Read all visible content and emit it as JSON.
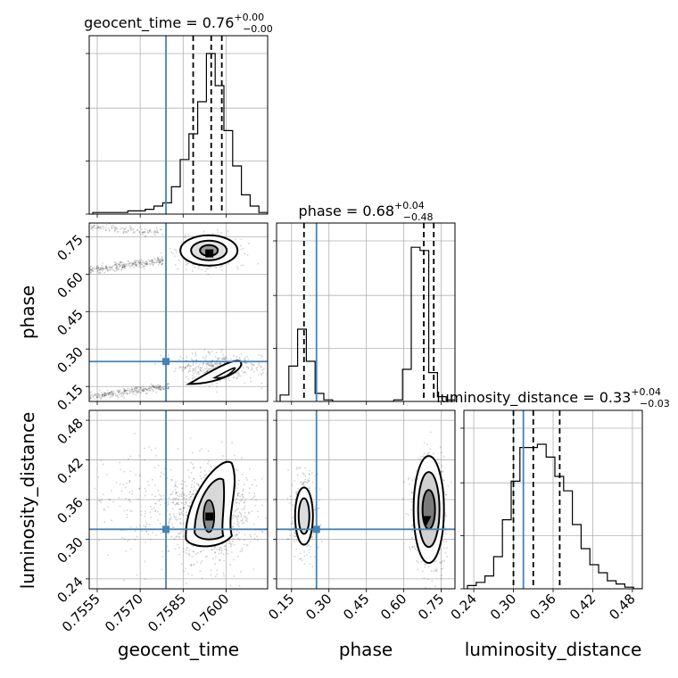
{
  "chart_data": {
    "type": "corner",
    "parameters": [
      "geocent_time",
      "phase",
      "luminosity_distance"
    ],
    "axis_labels": {
      "geocent_time": "geocent_time",
      "phase": "phase",
      "luminosity_distance": "luminosity_distance"
    },
    "titles": {
      "geocent_time": {
        "name": "geocent_time",
        "value": "0.76",
        "plus": "+0.00",
        "minus": "−0.00"
      },
      "phase": {
        "name": "phase",
        "value": "0.68",
        "plus": "+0.04",
        "minus": "−0.48"
      },
      "luminosity_distance": {
        "name": "luminosity_distance",
        "value": "0.33",
        "plus": "+0.04",
        "minus": "−0.03"
      }
    },
    "ranges": {
      "geocent_time": [
        0.75522,
        0.76145
      ],
      "phase": [
        0.09,
        0.805
      ],
      "luminosity_distance": [
        0.225,
        0.495
      ]
    },
    "ticks": {
      "geocent_time": {
        "values": [
          0.7555,
          0.757,
          0.7585,
          0.76
        ],
        "labels": [
          "0.7555",
          "0.7570",
          "0.7585",
          "0.7600"
        ]
      },
      "phase": {
        "values": [
          0.15,
          0.3,
          0.45,
          0.6,
          0.75
        ],
        "labels": [
          "0.15",
          "0.30",
          "0.45",
          "0.60",
          "0.75"
        ]
      },
      "luminosity_distance": {
        "values": [
          0.24,
          0.3,
          0.36,
          0.42,
          0.48
        ],
        "labels": [
          "0.24",
          "0.30",
          "0.36",
          "0.42",
          "0.48"
        ]
      }
    },
    "truths": {
      "geocent_time": 0.7579,
      "phase": 0.25,
      "luminosity_distance": 0.315
    },
    "quantiles": {
      "geocent_time": [
        0.75885,
        0.75948,
        0.75985
      ],
      "phase": [
        0.2,
        0.68,
        0.72
      ],
      "luminosity_distance": [
        0.3,
        0.33,
        0.37
      ]
    },
    "histograms": {
      "geocent_time": [
        0.01,
        0.01,
        0.01,
        0.01,
        0.02,
        0.02,
        0.03,
        0.05,
        0.07,
        0.17,
        0.34,
        0.5,
        0.7,
        1.0,
        0.8,
        0.52,
        0.3,
        0.12,
        0.05,
        0.01
      ],
      "phase": [
        0.04,
        0.22,
        0.45,
        0.25,
        0.05,
        0.01,
        0,
        0,
        0,
        0,
        0,
        0,
        0,
        0.01,
        0.2,
        0.96,
        0.94,
        0.18,
        0.03,
        0.01
      ],
      "luminosity_distance": [
        0.02,
        0.04,
        0.08,
        0.2,
        0.43,
        0.67,
        0.88,
        0.88,
        0.9,
        0.82,
        0.7,
        0.61,
        0.4,
        0.25,
        0.15,
        0.1,
        0.05,
        0.03,
        0.01,
        0.0
      ]
    },
    "grid": true,
    "truth_color": "#4682b4"
  }
}
